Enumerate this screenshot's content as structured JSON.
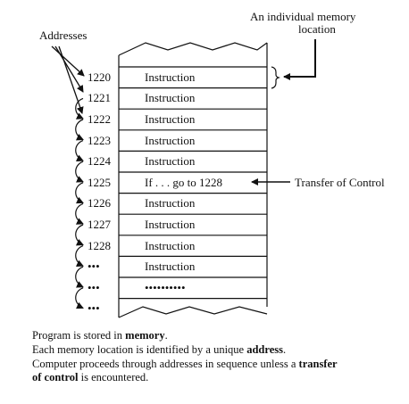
{
  "labels": {
    "addresses": "Addresses",
    "individual_memory_line1": "An individual memory",
    "individual_memory_line2": "location",
    "transfer_of_control": "Transfer of Control"
  },
  "rows": [
    {
      "address": "1220",
      "content": "Instruction"
    },
    {
      "address": "1221",
      "content": "Instruction"
    },
    {
      "address": "1222",
      "content": "Instruction"
    },
    {
      "address": "1223",
      "content": "Instruction"
    },
    {
      "address": "1224",
      "content": "Instruction"
    },
    {
      "address": "1225",
      "content": "If . . . go to 1228"
    },
    {
      "address": "1226",
      "content": "Instruction"
    },
    {
      "address": "1227",
      "content": "Instruction"
    },
    {
      "address": "1228",
      "content": "Instruction"
    },
    {
      "address": "•••",
      "content": "Instruction"
    },
    {
      "address": "•••",
      "content": "••••••••••"
    },
    {
      "address": "•••",
      "content": ""
    }
  ],
  "caption": {
    "line1_pre": "Program is stored in ",
    "line1_bold": "memory",
    "line1_post": ".",
    "line2_pre": "Each memory location is identified by a unique ",
    "line2_bold": "address",
    "line2_post": ".",
    "line3_pre": "Computer proceeds through addresses in sequence unless a ",
    "line3_bold": "transfer",
    "line4_bold": "of control",
    "line4_post": " is encountered."
  }
}
